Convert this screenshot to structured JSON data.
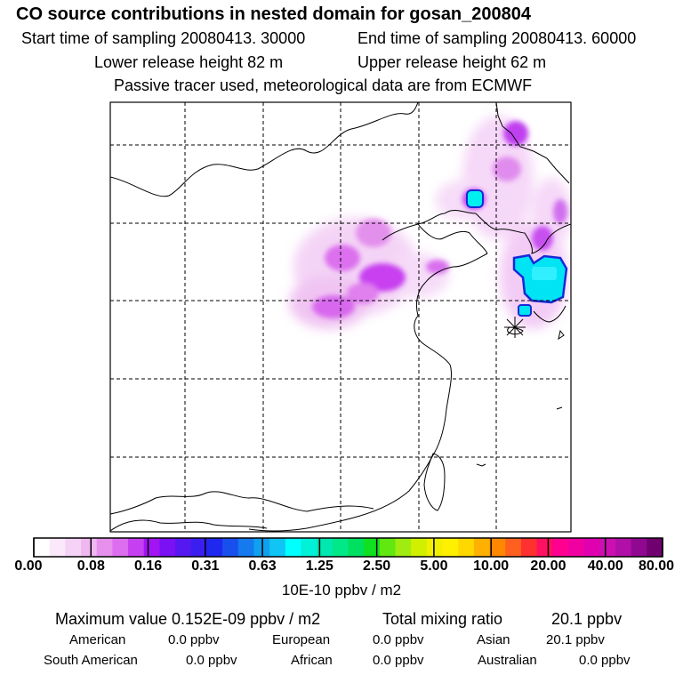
{
  "header": {
    "title": "CO  source contributions in nested domain for gosan_200804",
    "start_time": "Start time of sampling 20080413. 30000",
    "end_time": "End time of sampling 20080413. 60000",
    "lower_height": "Lower release height   82 m",
    "upper_height": "Upper release height   62 m",
    "tracer_note": "Passive tracer used, meteorological data are from ECMWF"
  },
  "colorbar": {
    "colors": [
      "#ffffff",
      "#fbe9fb",
      "#f6d2f6",
      "#f0b8f0",
      "#e690ec",
      "#dd6ef0",
      "#c63ff0",
      "#a314f4",
      "#7a10f4",
      "#5618f0",
      "#3b1ef0",
      "#1e28ee",
      "#1850ee",
      "#147aee",
      "#10a0f0",
      "#10c4f4",
      "#00ffff",
      "#00f0d8",
      "#00e8b0",
      "#00e888",
      "#00e060",
      "#10e020",
      "#60e810",
      "#a0ec10",
      "#d0f000",
      "#f0f000",
      "#fff000",
      "#ffd800",
      "#ffb000",
      "#ff8800",
      "#ff6020",
      "#ff3030",
      "#ff1060",
      "#ff0090",
      "#f000a0",
      "#e000b0",
      "#cc10b0",
      "#b010a8",
      "#900890",
      "#700070"
    ],
    "tick_labels": [
      "0.00",
      "0.08",
      "0.16",
      "0.31",
      "0.63",
      "1.25",
      "2.50",
      "5.00",
      "10.00",
      "20.00",
      "40.00",
      "80.00"
    ],
    "unit": "10E-10 ppbv / m2"
  },
  "stats": {
    "max_value": "Maximum value  0.152E-09 ppbv / m2",
    "total_mixing": "Total mixing ratio",
    "total_value": "20.1 ppbv",
    "american_label": "American",
    "american_value": "0.0 ppbv",
    "european_label": "European",
    "european_value": "0.0 ppbv",
    "asian_label": "Asian",
    "asian_value": "20.1 ppbv",
    "south_american_label": "South American",
    "south_american_value": "0.0 ppbv",
    "african_label": "African",
    "african_value": "0.0 ppbv",
    "australian_label": "Australian",
    "australian_value": "0.0 ppbv"
  }
}
